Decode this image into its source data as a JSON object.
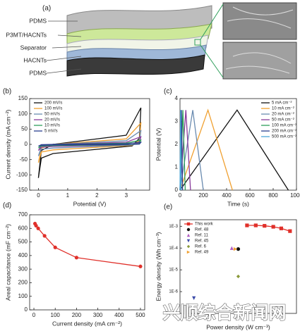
{
  "diagram": {
    "panel_label": "(a)",
    "layers": [
      "PDMS",
      "P3MT/HACNTs",
      "Separator",
      "HACNTs",
      "PDMS"
    ]
  },
  "watermark": "兴顺综合新闻网",
  "chart_data": [
    {
      "type": "line",
      "panel_label": "(b)",
      "x_label": "Potential (V)",
      "y_label": "Current density (mA cm⁻²)",
      "xlim": [
        -0.3,
        3.8
      ],
      "xticks": [
        0,
        1,
        2,
        3
      ],
      "ylim": [
        -150,
        150
      ],
      "yticks": [
        -150,
        -100,
        -50,
        0,
        50,
        100,
        150
      ],
      "legend": "upper left",
      "x": [
        0,
        0.1,
        0.5,
        3.0,
        3.5,
        3.45,
        3.2,
        0.5,
        0.1,
        0
      ],
      "series": [
        {
          "name": "200 mV/s",
          "color": "#111111",
          "values": [
            -110,
            -20,
            0,
            30,
            120,
            20,
            -5,
            -30,
            -45,
            -110
          ]
        },
        {
          "name": "100 mV/s",
          "color": "#f0a030",
          "values": [
            -60,
            -12,
            0,
            18,
            70,
            12,
            -3,
            -18,
            -25,
            -60
          ]
        },
        {
          "name": "50 mV/s",
          "color": "#6a8bb0",
          "values": [
            -38,
            -8,
            0,
            12,
            45,
            8,
            -2,
            -12,
            -16,
            -38
          ]
        },
        {
          "name": "20 mV/s",
          "color": "#8a3c9c",
          "values": [
            -20,
            -4,
            0,
            7,
            25,
            4,
            -1,
            -7,
            -9,
            -20
          ]
        },
        {
          "name": "10 mV/s",
          "color": "#2e9e5a",
          "values": [
            -12,
            -3,
            0,
            4,
            14,
            2,
            -1,
            -4,
            -5,
            -12
          ]
        },
        {
          "name": "5 mV/s",
          "color": "#2a3f8f",
          "values": [
            -6,
            -1,
            0,
            2,
            7,
            1,
            0,
            -2,
            -3,
            -6
          ]
        }
      ]
    },
    {
      "type": "line",
      "panel_label": "(c)",
      "x_label": "Time (s)",
      "y_label": "Potential (V)",
      "xlim": [
        0,
        1000
      ],
      "xticks": [
        0,
        200,
        400,
        600,
        800,
        1000
      ],
      "ylim": [
        0,
        4
      ],
      "yticks": [
        0,
        1,
        2,
        3,
        4
      ],
      "legend": "upper right",
      "series": [
        {
          "name": "5 mA cm⁻²",
          "color": "#111111",
          "x": [
            0,
            490,
            930
          ],
          "values": [
            0,
            3.5,
            0
          ]
        },
        {
          "name": "10 mA cm⁻²",
          "color": "#f0a030",
          "x": [
            0,
            240,
            450
          ],
          "values": [
            0,
            3.5,
            0
          ]
        },
        {
          "name": "20 mA cm⁻²",
          "color": "#6a8bb0",
          "x": [
            0,
            110,
            200
          ],
          "values": [
            0,
            3.5,
            0
          ]
        },
        {
          "name": "50 mA cm⁻²",
          "color": "#8a3c9c",
          "x": [
            0,
            50,
            90
          ],
          "values": [
            0,
            3.5,
            0
          ]
        },
        {
          "name": "100 mA cm⁻²",
          "color": "#2e9e5a",
          "x": [
            0,
            25,
            45
          ],
          "values": [
            0,
            3.5,
            0
          ]
        },
        {
          "name": "200 mA cm⁻²",
          "color": "#2a3f8f",
          "x": [
            0,
            12,
            22
          ],
          "values": [
            0,
            3.5,
            0
          ]
        },
        {
          "name": "500 mA cm⁻²",
          "color": "#4aa8d8",
          "x": [
            0,
            5,
            9
          ],
          "values": [
            0,
            3.5,
            0
          ]
        }
      ]
    },
    {
      "type": "line",
      "panel_label": "(d)",
      "x_label": "Current density (mA cm⁻²)",
      "y_label": "Areal capacitance (mF cm⁻²)",
      "xlim": [
        -20,
        520
      ],
      "xticks": [
        0,
        100,
        200,
        300,
        400,
        500
      ],
      "ylim": [
        0,
        700
      ],
      "yticks": [
        0,
        100,
        200,
        300,
        400,
        500,
        600,
        700
      ],
      "series": [
        {
          "color": "#e0302a",
          "marker": "circle",
          "x": [
            5,
            10,
            20,
            50,
            100,
            200,
            500
          ],
          "values": [
            635,
            620,
            600,
            545,
            460,
            385,
            320
          ]
        }
      ]
    },
    {
      "type": "line",
      "panel_label": "(e)",
      "x_label": "Power density (W cm⁻³)",
      "y_label": "Energy density (Wh cm⁻³)",
      "xscale": "log",
      "yscale": "log",
      "xlim": [
        0.001,
        10
      ],
      "ylim": [
        1e-07,
        0.002
      ],
      "yticks": [
        {
          "value": 0.001,
          "label": "1E-3"
        },
        {
          "value": 0.0001,
          "label": "1E-4"
        },
        {
          "value": 1e-05,
          "label": "1E-5"
        },
        {
          "value": 1e-06,
          "label": "1E-6"
        }
      ],
      "legend": "upper left",
      "series": [
        {
          "name": "This work",
          "color": "#e0302a",
          "marker": "square",
          "x": [
            0.2,
            0.4,
            0.8,
            1.6,
            3,
            6
          ],
          "values": [
            0.0011,
            0.0011,
            0.00105,
            0.00095,
            0.0008,
            0.0006
          ]
        },
        {
          "name": "Ref. 48",
          "color": "#111111",
          "marker": "circle",
          "line": false,
          "x": [
            0.1
          ],
          "values": [
            9e-05
          ]
        },
        {
          "name": "Ref. 11",
          "color": "#b05cc0",
          "marker": "triangle-up",
          "line": false,
          "x": [
            0.06
          ],
          "values": [
            0.0001
          ]
        },
        {
          "name": "Ref. 45",
          "color": "#3a4aa8",
          "marker": "triangle-down",
          "line": false,
          "x": [
            0.003
          ],
          "values": [
            5e-07
          ]
        },
        {
          "name": "Ref. 6",
          "color": "#8a9a3a",
          "marker": "diamond",
          "line": false,
          "x": [
            0.1
          ],
          "values": [
            5e-06
          ]
        },
        {
          "name": "Ref. 49",
          "color": "#f0a030",
          "marker": "triangle-right",
          "line": false,
          "x": [
            0.08
          ],
          "values": [
            9e-05
          ]
        }
      ]
    }
  ]
}
